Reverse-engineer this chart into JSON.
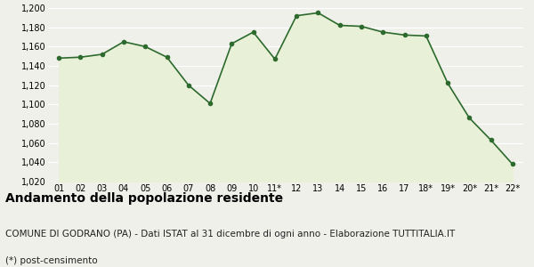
{
  "data": [
    [
      "01",
      1148
    ],
    [
      "02",
      1149
    ],
    [
      "03",
      1152
    ],
    [
      "04",
      1165
    ],
    [
      "05",
      1160
    ],
    [
      "06",
      1149
    ],
    [
      "07",
      1120
    ],
    [
      "08",
      1101
    ],
    [
      "09",
      1163
    ],
    [
      "10",
      1175
    ],
    [
      "11*",
      1147
    ],
    [
      "12",
      1192
    ],
    [
      "13",
      1195
    ],
    [
      "14",
      1182
    ],
    [
      "15",
      1181
    ],
    [
      "16",
      1175
    ],
    [
      "17",
      1172
    ],
    [
      "18*",
      1171
    ],
    [
      "19*",
      1122
    ],
    [
      "20*",
      1086
    ],
    [
      "21*",
      1063
    ],
    [
      "22*",
      1038
    ]
  ],
  "ylim": [
    1020,
    1200
  ],
  "yticks": [
    1020,
    1040,
    1060,
    1080,
    1100,
    1120,
    1140,
    1160,
    1180,
    1200
  ],
  "line_color": "#2d6a2d",
  "fill_color": "#e8f0d8",
  "marker_color": "#2d6a2d",
  "bg_color": "#f0f0eb",
  "plot_bg_color": "#f0f0eb",
  "grid_color": "#ffffff",
  "title": "Andamento della popolazione residente",
  "subtitle": "COMUNE DI GODRANO (PA) - Dati ISTAT al 31 dicembre di ogni anno - Elaborazione TUTTITALIA.IT",
  "footnote": "(*) post-censimento",
  "title_fontsize": 10,
  "subtitle_fontsize": 7.5,
  "footnote_fontsize": 7.5
}
